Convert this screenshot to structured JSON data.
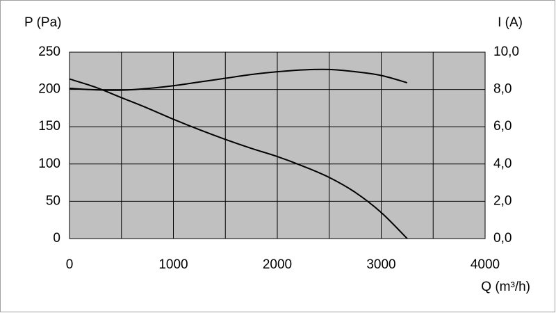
{
  "chart_data": {
    "type": "line",
    "y_label": "P (Pa)",
    "y2_label": "I (A)",
    "x_label": "Q (m³/h)",
    "x": [
      0,
      250,
      500,
      750,
      1000,
      1250,
      1500,
      1750,
      2000,
      2250,
      2500,
      2750,
      3000,
      3250
    ],
    "series": [
      {
        "name": "P",
        "color": "#000000",
        "values": [
          214,
          203,
          189,
          175,
          160,
          146,
          133,
          121,
          110,
          97,
          82,
          62,
          35,
          0
        ]
      },
      {
        "name": "I",
        "color": "#000000",
        "axis": "y2",
        "values": [
          8.06,
          7.98,
          7.96,
          8.05,
          8.2,
          8.4,
          8.6,
          8.8,
          8.95,
          9.05,
          9.07,
          8.95,
          8.75,
          8.36
        ]
      }
    ],
    "xlim": [
      0,
      4000
    ],
    "xticks": [
      0,
      1000,
      2000,
      3000,
      4000
    ],
    "xgrid": [
      0,
      500,
      1000,
      1500,
      2000,
      2500,
      3000,
      3500,
      4000
    ],
    "ylim": [
      0,
      250
    ],
    "yticks": [
      0,
      50,
      100,
      150,
      200,
      250
    ],
    "y2lim": [
      0,
      10
    ],
    "y2ticks": [
      {
        "value": 0,
        "label": "0,0"
      },
      {
        "value": 2,
        "label": "2,0"
      },
      {
        "value": 4,
        "label": "4,0"
      },
      {
        "value": 6,
        "label": "6,0"
      },
      {
        "value": 8,
        "label": "8,0"
      },
      {
        "value": 10,
        "label": "10,0"
      }
    ],
    "plot_background": "#c0c0c0",
    "grid": true
  }
}
